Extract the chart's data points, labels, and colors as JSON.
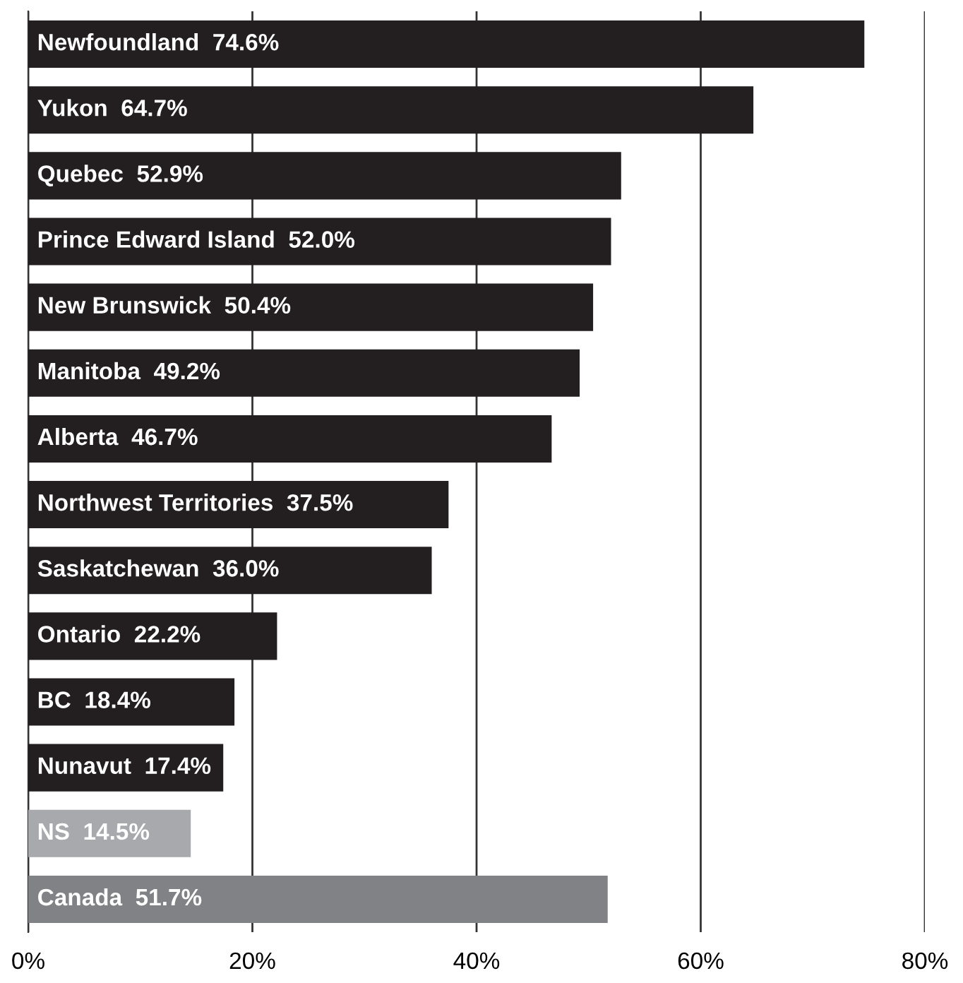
{
  "chart_data": {
    "type": "bar",
    "orientation": "horizontal",
    "categories": [
      "Newfoundland",
      "Yukon",
      "Quebec",
      "Prince Edward Island",
      "New Brunswick",
      "Manitoba",
      "Alberta",
      "Northwest Territories",
      "Saskatchewan",
      "Ontario",
      "BC",
      "Nunavut",
      "NS",
      "Canada"
    ],
    "values": [
      74.6,
      64.7,
      52.9,
      52.0,
      50.4,
      49.2,
      46.7,
      37.5,
      36.0,
      22.2,
      18.4,
      17.4,
      14.5,
      51.7
    ],
    "value_labels": [
      "74.6%",
      "64.7%",
      "52.9%",
      "52.0%",
      "50.4%",
      "49.2%",
      "46.7%",
      "37.5%",
      "36.0%",
      "22.2%",
      "18.4%",
      "17.4%",
      "14.5%",
      "51.7%"
    ],
    "colors": [
      "#231f20",
      "#231f20",
      "#231f20",
      "#231f20",
      "#231f20",
      "#231f20",
      "#231f20",
      "#231f20",
      "#231f20",
      "#231f20",
      "#231f20",
      "#231f20",
      "#a7a9ac",
      "#808285"
    ],
    "xlim": [
      0,
      80
    ],
    "xticks": [
      {
        "value": 0,
        "label": "0%"
      },
      {
        "value": 20,
        "label": "20%"
      },
      {
        "value": 40,
        "label": "40%"
      },
      {
        "value": 60,
        "label": "60%"
      },
      {
        "value": 80,
        "label": "80%"
      }
    ],
    "grid": "x",
    "legend": false
  }
}
